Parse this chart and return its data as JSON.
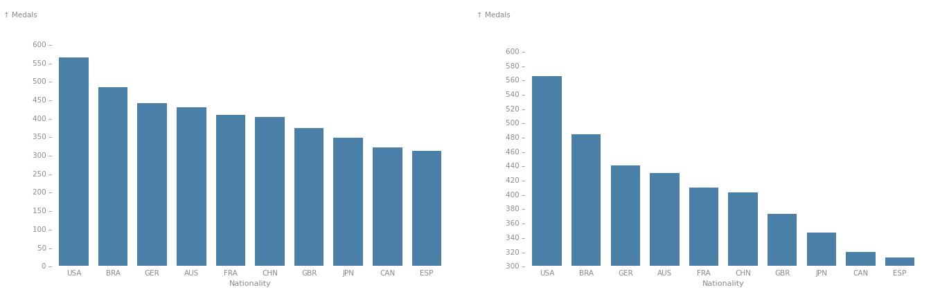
{
  "categories": [
    "USA",
    "BRA",
    "GER",
    "AUS",
    "FRA",
    "CHN",
    "GBR",
    "JPN",
    "CAN",
    "ESP"
  ],
  "values": [
    565,
    484,
    440,
    430,
    409,
    403,
    373,
    347,
    320,
    312
  ],
  "bar_color": "#4a80a8",
  "xlabel": "Nationality",
  "ylabel": "↑ Medals",
  "left_ylim": [
    0,
    620
  ],
  "right_ylim": [
    300,
    620
  ],
  "left_yticks": [
    0,
    50,
    100,
    150,
    200,
    250,
    300,
    350,
    400,
    450,
    500,
    550,
    600
  ],
  "right_yticks": [
    300,
    320,
    340,
    360,
    380,
    400,
    420,
    440,
    460,
    480,
    500,
    520,
    540,
    560,
    580,
    600
  ],
  "background_color": "#ffffff",
  "bar_width": 0.75,
  "label_color": "#888888",
  "tick_label_color": "#888888"
}
